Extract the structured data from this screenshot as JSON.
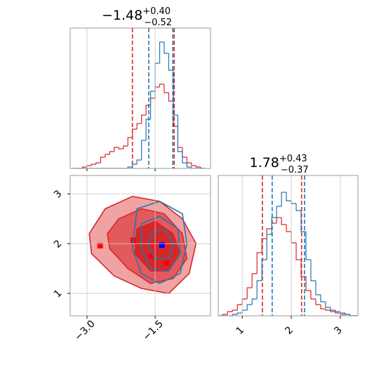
{
  "chart_data": [
    {
      "type": "histogram",
      "title": {
        "value": "−1.48",
        "plus": "+0.40",
        "minus": "−0.52"
      },
      "xlim": [
        -3.37,
        -0.28
      ],
      "ylim": [
        0,
        100
      ],
      "xticks": [
        -3,
        -1.5
      ],
      "grid": true,
      "bins": [
        -3.3,
        -3.2,
        -3.1,
        -3.0,
        -2.9,
        -2.8,
        -2.7,
        -2.6,
        -2.5,
        -2.4,
        -2.3,
        -2.2,
        -2.1,
        -2.0,
        -1.9,
        -1.8,
        -1.7,
        -1.6,
        -1.5,
        -1.4,
        -1.3,
        -1.2,
        -1.1,
        -1.0,
        -0.9,
        -0.8,
        -0.7,
        -0.6,
        -0.5,
        -0.4
      ],
      "series": [
        {
          "color": "#d62728",
          "values": [
            0,
            0,
            1,
            2,
            3,
            4,
            8,
            10,
            12,
            15,
            14,
            16,
            22,
            28,
            32,
            38,
            45,
            50,
            58,
            60,
            54,
            48,
            30,
            15,
            8,
            4,
            2,
            1,
            0
          ],
          "quantiles": [
            -2.0,
            -1.08
          ]
        },
        {
          "color": "#1f77b4",
          "values": [
            0,
            0,
            0,
            0,
            0,
            0,
            0,
            0,
            0,
            0,
            0,
            0,
            1,
            3,
            6,
            20,
            35,
            55,
            75,
            90,
            82,
            70,
            38,
            12,
            4,
            1,
            0,
            0,
            0
          ],
          "quantiles": [
            -1.64,
            -1.11
          ]
        }
      ]
    },
    {
      "type": "contour",
      "xlim": [
        -3.37,
        -0.28
      ],
      "ylim": [
        0.55,
        3.37
      ],
      "xticks": [
        {
          "value": -3,
          "label": "−3.0"
        },
        {
          "value": -1.5,
          "label": "−1.5"
        }
      ],
      "yticks": [
        1,
        2,
        3
      ],
      "grid": true,
      "series": [
        {
          "color": "#d62728",
          "filled": true,
          "levels": [
            {
              "x": [
                -2.6,
                -2.0,
                -1.4,
                -0.9,
                -0.6,
                -0.75,
                -1.2,
                -1.8,
                -2.4,
                -2.9,
                -2.95
              ],
              "y": [
                2.7,
                2.95,
                2.85,
                2.5,
                2.0,
                1.4,
                1.0,
                1.1,
                1.35,
                1.8,
                2.2
              ]
            },
            {
              "x": [
                -2.3,
                -1.8,
                -1.3,
                -0.9,
                -0.8,
                -1.1,
                -1.6,
                -2.1,
                -2.5,
                -2.55
              ],
              "y": [
                2.5,
                2.7,
                2.6,
                2.2,
                1.7,
                1.3,
                1.2,
                1.5,
                1.9,
                2.2
              ]
            },
            {
              "x": [
                -1.9,
                -1.5,
                -1.1,
                -0.95,
                -1.2,
                -1.6,
                -1.95
              ],
              "y": [
                2.3,
                2.45,
                2.2,
                1.8,
                1.45,
                1.45,
                1.8
              ]
            }
          ],
          "points": {
            "x": [
              -2.71,
              -1.98,
              -1.58,
              -1.25
            ],
            "y": [
              1.96,
              2.07,
              1.75,
              1.61
            ]
          }
        },
        {
          "color": "#1f77b4",
          "filled": false,
          "levels": [
            {
              "x": [
                -1.9,
                -1.4,
                -0.9,
                -0.8,
                -0.95,
                -1.4,
                -1.8,
                -2.0
              ],
              "y": [
                2.7,
                2.85,
                2.6,
                2.0,
                1.4,
                1.2,
                1.4,
                1.9
              ]
            },
            {
              "x": [
                -1.8,
                -1.4,
                -1.0,
                -0.95,
                -1.2,
                -1.6,
                -1.8
              ],
              "y": [
                2.4,
                2.55,
                2.3,
                1.8,
                1.45,
                1.5,
                1.9
              ]
            },
            {
              "x": [
                -1.6,
                -1.3,
                -1.1,
                -1.2,
                -1.5,
                -1.65
              ],
              "y": [
                2.2,
                2.3,
                2.0,
                1.7,
                1.7,
                1.95
              ]
            }
          ],
          "points": {
            "x": [
              -1.35
            ],
            "y": [
              1.97
            ]
          }
        }
      ]
    },
    {
      "type": "histogram",
      "title": {
        "value": "1.78",
        "plus": "+0.43",
        "minus": "−0.37"
      },
      "xlim": [
        0.51,
        3.36
      ],
      "ylim": [
        0,
        100
      ],
      "xticks": [
        1,
        2,
        3
      ],
      "grid": true,
      "bins": [
        0.5,
        0.6,
        0.7,
        0.8,
        0.9,
        1.0,
        1.1,
        1.2,
        1.3,
        1.4,
        1.5,
        1.6,
        1.7,
        1.8,
        1.9,
        2.0,
        2.1,
        2.2,
        2.3,
        2.4,
        2.5,
        2.6,
        2.7,
        2.8,
        2.9,
        3.0,
        3.1,
        3.2,
        3.3,
        3.4
      ],
      "series": [
        {
          "color": "#d62728",
          "values": [
            0,
            1,
            3,
            4,
            8,
            12,
            20,
            30,
            45,
            55,
            62,
            66,
            70,
            65,
            60,
            52,
            40,
            28,
            18,
            12,
            8,
            5,
            4,
            3,
            2,
            1,
            1,
            0,
            0
          ],
          "quantiles": [
            1.41,
            2.21
          ]
        },
        {
          "color": "#1f77b4",
          "values": [
            0,
            0,
            0,
            1,
            2,
            4,
            8,
            12,
            25,
            40,
            58,
            70,
            78,
            88,
            82,
            80,
            75,
            60,
            40,
            25,
            15,
            10,
            6,
            4,
            3,
            2,
            1,
            0,
            0
          ],
          "quantiles": [
            1.61,
            2.27
          ]
        }
      ]
    }
  ]
}
